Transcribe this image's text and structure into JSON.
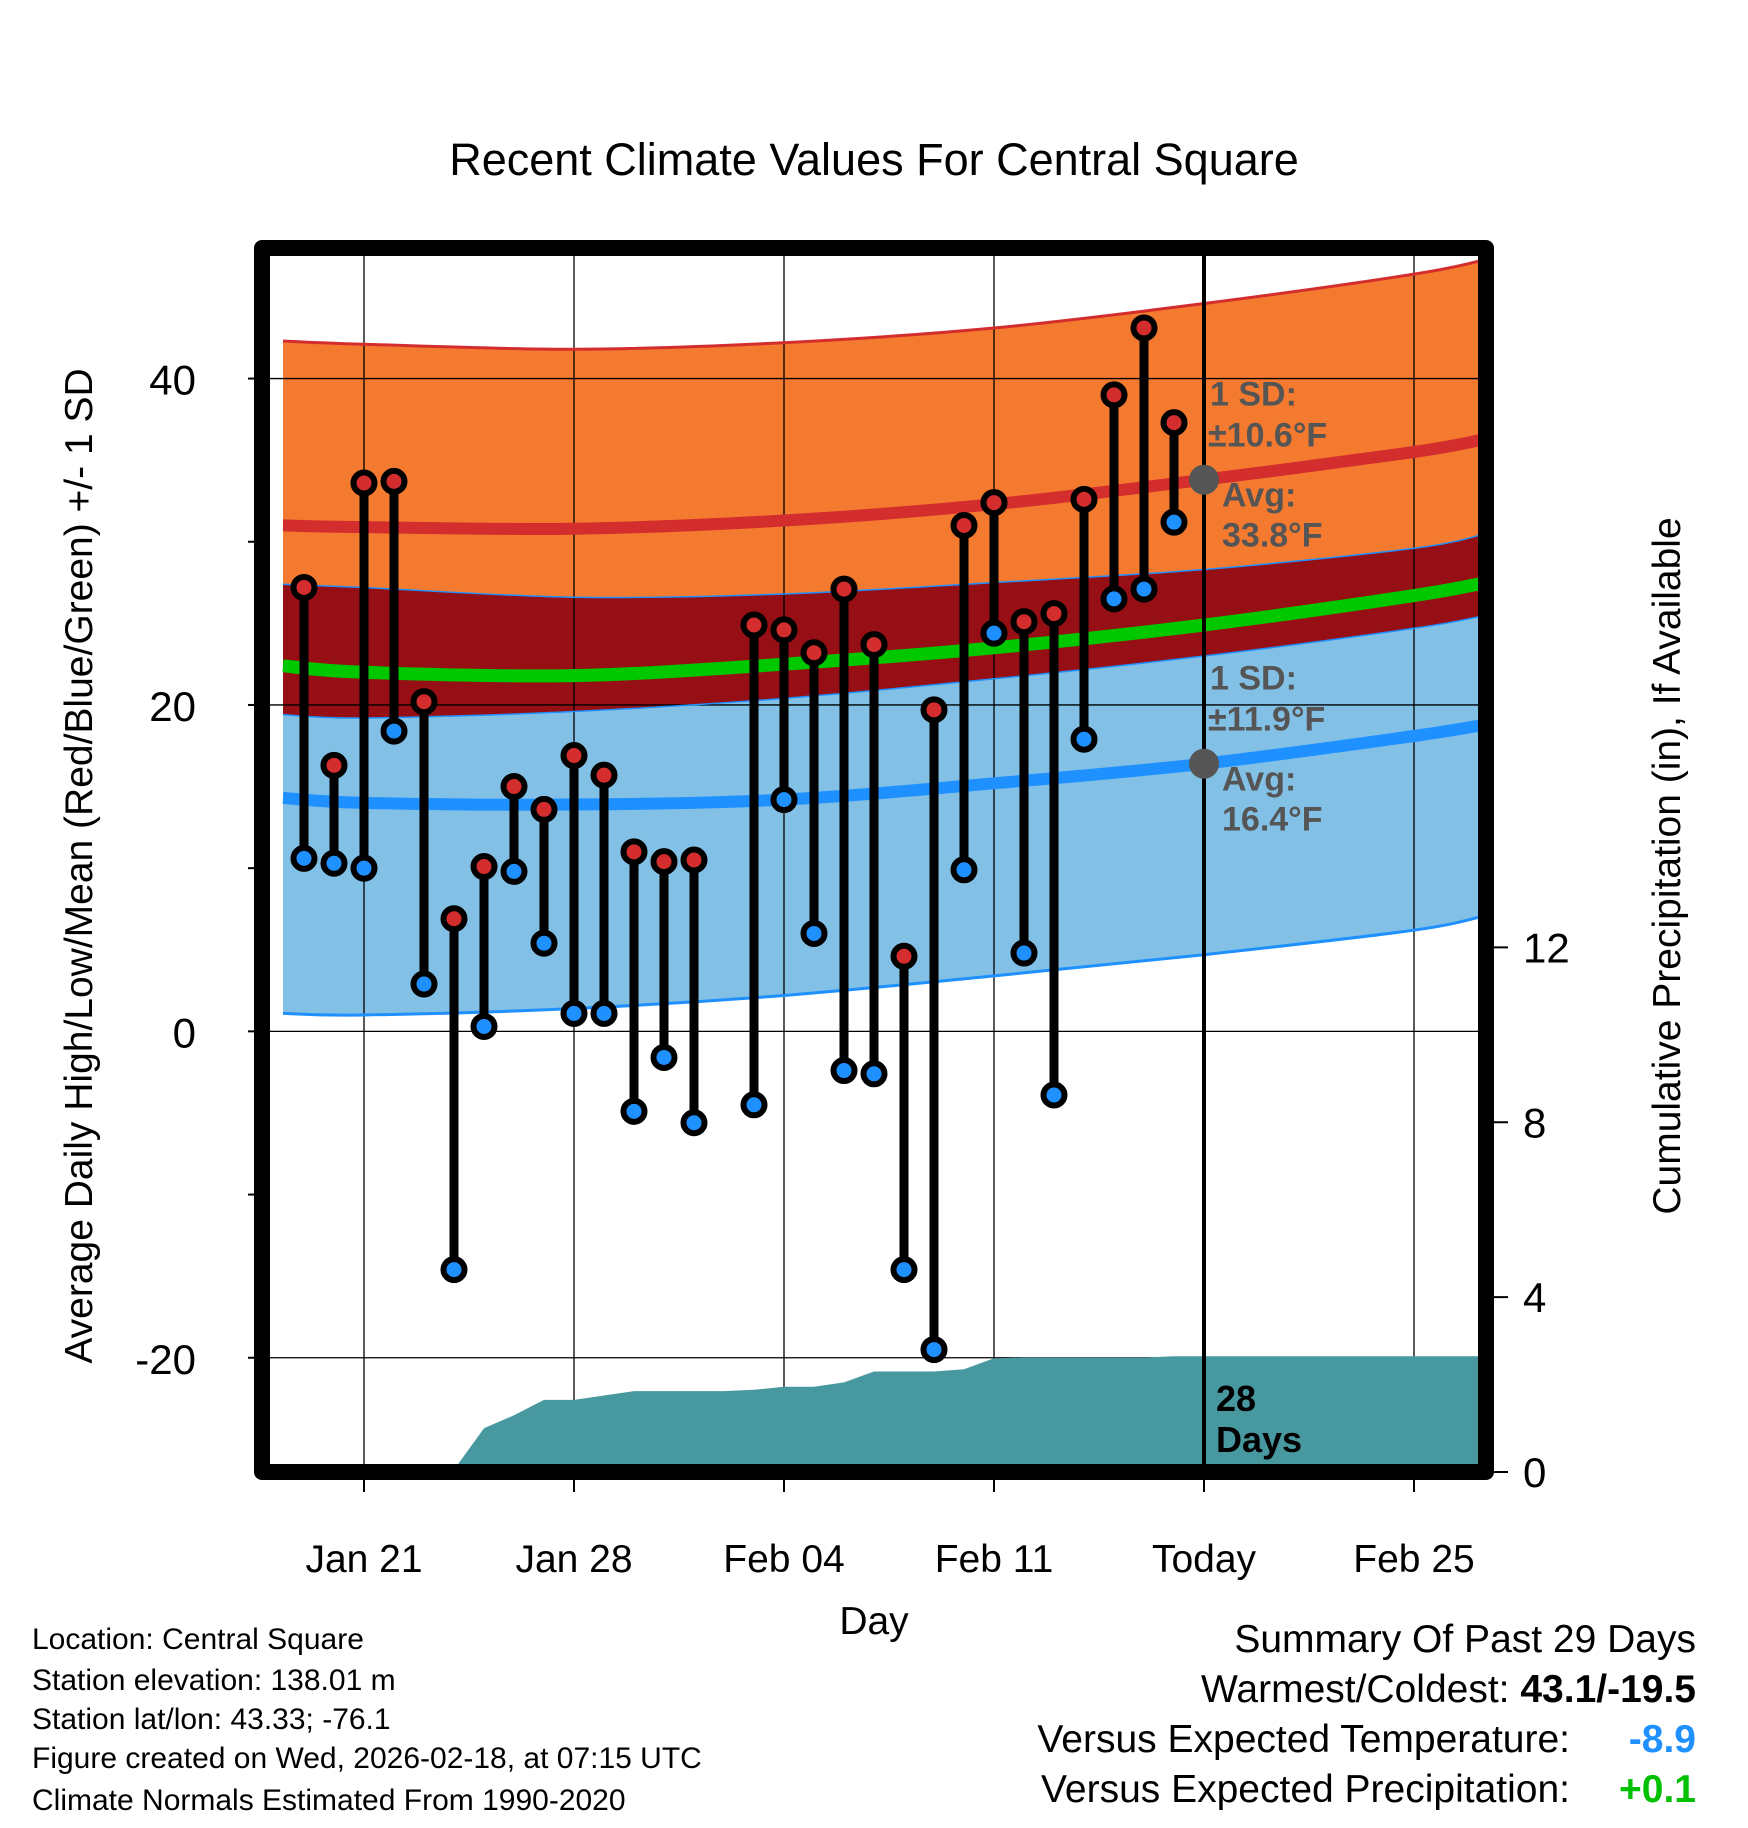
{
  "chart_data": {
    "type": "line",
    "title": "Recent Climate Values For Central Square",
    "xlabel": "Day",
    "ylabel": "Average Daily High/Low/Mean (Red/Blue/Green) +/- 1 SD",
    "y2label": "Cumulative Precipitation (in), If Available",
    "xlim": [
      -3.4,
      37.4
    ],
    "ylim": [
      -27,
      48
    ],
    "y2lim": [
      0,
      28
    ],
    "grid": true,
    "x_ticks": [
      {
        "x": 0,
        "label": "Jan 21"
      },
      {
        "x": 7,
        "label": "Jan 28"
      },
      {
        "x": 14,
        "label": "Feb 04"
      },
      {
        "x": 21,
        "label": "Feb 11"
      },
      {
        "x": 28,
        "label": "Today"
      },
      {
        "x": 35,
        "label": "Feb 25"
      }
    ],
    "y_ticks": [
      -20,
      0,
      20,
      40
    ],
    "y2_ticks": [
      0,
      4,
      8,
      12
    ],
    "normals": {
      "x": [
        -2.7,
        0,
        7,
        14,
        21,
        28,
        35,
        37.4
      ],
      "high_mean": [
        31.0,
        30.9,
        30.8,
        31.3,
        32.3,
        33.8,
        35.5,
        36.3
      ],
      "high_sd_upper": [
        42.3,
        42.1,
        41.8,
        42.2,
        43.1,
        44.6,
        46.4,
        47.3
      ],
      "high_sd_lower": [
        27.4,
        27.2,
        26.6,
        26.8,
        27.5,
        28.3,
        29.6,
        30.5
      ],
      "mean": [
        22.4,
        22.0,
        21.8,
        22.5,
        23.5,
        24.9,
        26.7,
        27.5
      ],
      "low_mean": [
        14.3,
        14.0,
        13.9,
        14.2,
        15.2,
        16.4,
        18.1,
        18.8
      ],
      "low_sd_upper": [
        19.4,
        19.2,
        19.6,
        20.4,
        21.6,
        23.0,
        24.7,
        25.5
      ],
      "low_sd_lower": [
        1.1,
        1.0,
        1.4,
        2.2,
        3.4,
        4.7,
        6.2,
        7.1
      ]
    },
    "series": [
      {
        "name": "Daily High",
        "color": "#d42d2d",
        "x": [
          -2,
          -1,
          0,
          1,
          2,
          3,
          4,
          5,
          6,
          7,
          8,
          9,
          10,
          11,
          13,
          14,
          15,
          16,
          17,
          18,
          19,
          20,
          21,
          22,
          23,
          24,
          25,
          26,
          27
        ],
        "values": [
          27.2,
          16.3,
          33.6,
          33.7,
          20.2,
          6.9,
          10.1,
          15.0,
          13.6,
          16.9,
          15.7,
          11.0,
          10.4,
          10.5,
          24.9,
          24.6,
          23.2,
          27.1,
          23.7,
          4.6,
          19.7,
          31.0,
          32.4,
          25.1,
          25.6,
          32.6,
          39.0,
          43.1,
          37.3
        ]
      },
      {
        "name": "Daily Low",
        "color": "#1e90ff",
        "x": [
          -2,
          -1,
          0,
          1,
          2,
          3,
          4,
          5,
          6,
          7,
          8,
          9,
          10,
          11,
          13,
          14,
          15,
          16,
          17,
          18,
          19,
          20,
          21,
          22,
          23,
          24,
          25,
          26,
          27
        ],
        "values": [
          10.6,
          10.3,
          10.0,
          18.4,
          2.9,
          -14.6,
          0.3,
          9.8,
          5.4,
          1.1,
          1.1,
          -4.9,
          -1.6,
          -5.6,
          -4.5,
          14.2,
          6.0,
          -2.4,
          -2.6,
          -14.6,
          -19.5,
          9.9,
          24.4,
          4.8,
          -3.9,
          17.9,
          26.5,
          27.1,
          31.2
        ]
      }
    ],
    "precip": {
      "name": "Cumulative Precipitation",
      "color": "#4898a0",
      "x": [
        -2.7,
        2.0,
        3.0,
        4.0,
        5.0,
        6.0,
        7.0,
        8.0,
        9.0,
        10.0,
        11.0,
        12.0,
        13.0,
        14.0,
        15.0,
        16.0,
        17.0,
        18.0,
        19.0,
        20.0,
        21.0,
        22.0,
        23.0,
        24.0,
        25.0,
        26.0,
        27.0,
        28.0,
        37.4
      ],
      "values": [
        0,
        0,
        0.05,
        1.0,
        1.3,
        1.65,
        1.65,
        1.75,
        1.85,
        1.85,
        1.85,
        1.85,
        1.88,
        1.95,
        1.95,
        2.05,
        2.3,
        2.3,
        2.3,
        2.35,
        2.6,
        2.62,
        2.62,
        2.62,
        2.62,
        2.62,
        2.65,
        2.65,
        2.65
      ]
    },
    "today_x": 28,
    "annotations": {
      "high_sd_line1": "1 SD:",
      "high_sd_line2": "±10.6°F",
      "high_avg_line1": "Avg:",
      "high_avg_line2": "33.8°F",
      "high_avg_value": 33.8,
      "low_sd_line1": "1 SD:",
      "low_sd_line2": "±11.9°F",
      "low_avg_line1": "Avg:",
      "low_avg_line2": "16.4°F",
      "low_avg_value": 16.4,
      "days_line1": "28",
      "days_line2": "Days"
    },
    "colors": {
      "high_band": "#f47a30",
      "high_line": "#d42d2d",
      "overlap_band": "#960f14",
      "mean_line": "#00c800",
      "low_band": "#82c0e6",
      "low_line": "#1e90ff",
      "annotation": "#555555"
    }
  },
  "info": {
    "location": "Location: Central Square",
    "elevation": "Station elevation: 138.01 m",
    "latlon": "Station lat/lon: 43.33; -76.1",
    "created": "Figure created on Wed, 2026-02-18, at 07:15 UTC",
    "normals": "Climate Normals Estimated From 1990-2020"
  },
  "summary": {
    "heading": "Summary Of Past 29 Days",
    "warm_cold_label": "Warmest/Coldest:",
    "warm_cold_value": "43.1/-19.5",
    "temp_label": "Versus Expected Temperature:",
    "temp_value": "-8.9",
    "temp_color": "#1e90ff",
    "precip_label": "Versus Expected Precipitation:",
    "precip_value": "+0.1",
    "precip_color": "#00c000"
  }
}
